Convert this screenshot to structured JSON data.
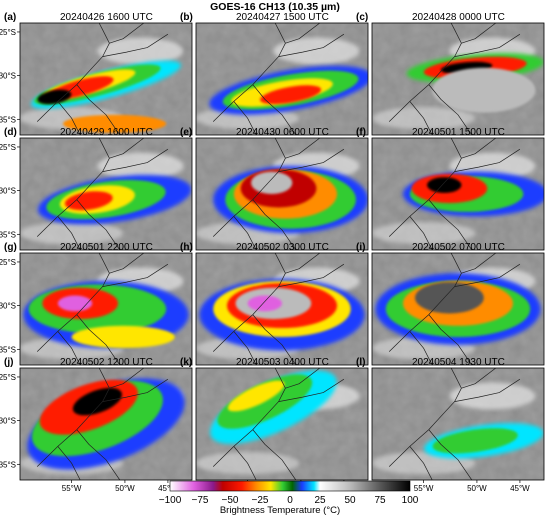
{
  "title": "GOES-16 CH13 (10.35 µm)",
  "panels": [
    {
      "letter": "(a)",
      "time": "20240426 1600 UTC"
    },
    {
      "letter": "(b)",
      "time": "20240427 1500 UTC"
    },
    {
      "letter": "(c)",
      "time": "20240428 0000 UTC"
    },
    {
      "letter": "(d)",
      "time": "20240429 1600 UTC"
    },
    {
      "letter": "(e)",
      "time": "20240430 0600 UTC"
    },
    {
      "letter": "(f)",
      "time": "20240501 1500 UTC"
    },
    {
      "letter": "(g)",
      "time": "20240501 2200 UTC"
    },
    {
      "letter": "(h)",
      "time": "20240502 0300 UTC"
    },
    {
      "letter": "(i)",
      "time": "20240502 0700 UTC"
    },
    {
      "letter": "(j)",
      "time": "20240502 1200 UTC"
    },
    {
      "letter": "(k)",
      "time": "20240503 0400 UTC"
    },
    {
      "letter": "(l)",
      "time": "20240504 1930 UTC"
    }
  ],
  "lat_ticks": [
    "25°S",
    "30°S",
    "35°S"
  ],
  "lon_ticks": [
    "55°W",
    "50°W",
    "45°W"
  ],
  "colorbar": {
    "label": "Brightness Temperature (°C)",
    "ticks": [
      "−100",
      "−75",
      "−50",
      "−25",
      "0",
      "25",
      "50",
      "75",
      "100"
    ],
    "colors": [
      "#ffffff",
      "#e060e0",
      "#8a1a8a",
      "#c00000",
      "#ff1a00",
      "#ff8c00",
      "#ffe600",
      "#33cc33",
      "#006400",
      "#1a3cff",
      "#00e5ff",
      "#ffffff",
      "#bbbbbb",
      "#555555",
      "#000000"
    ]
  }
}
